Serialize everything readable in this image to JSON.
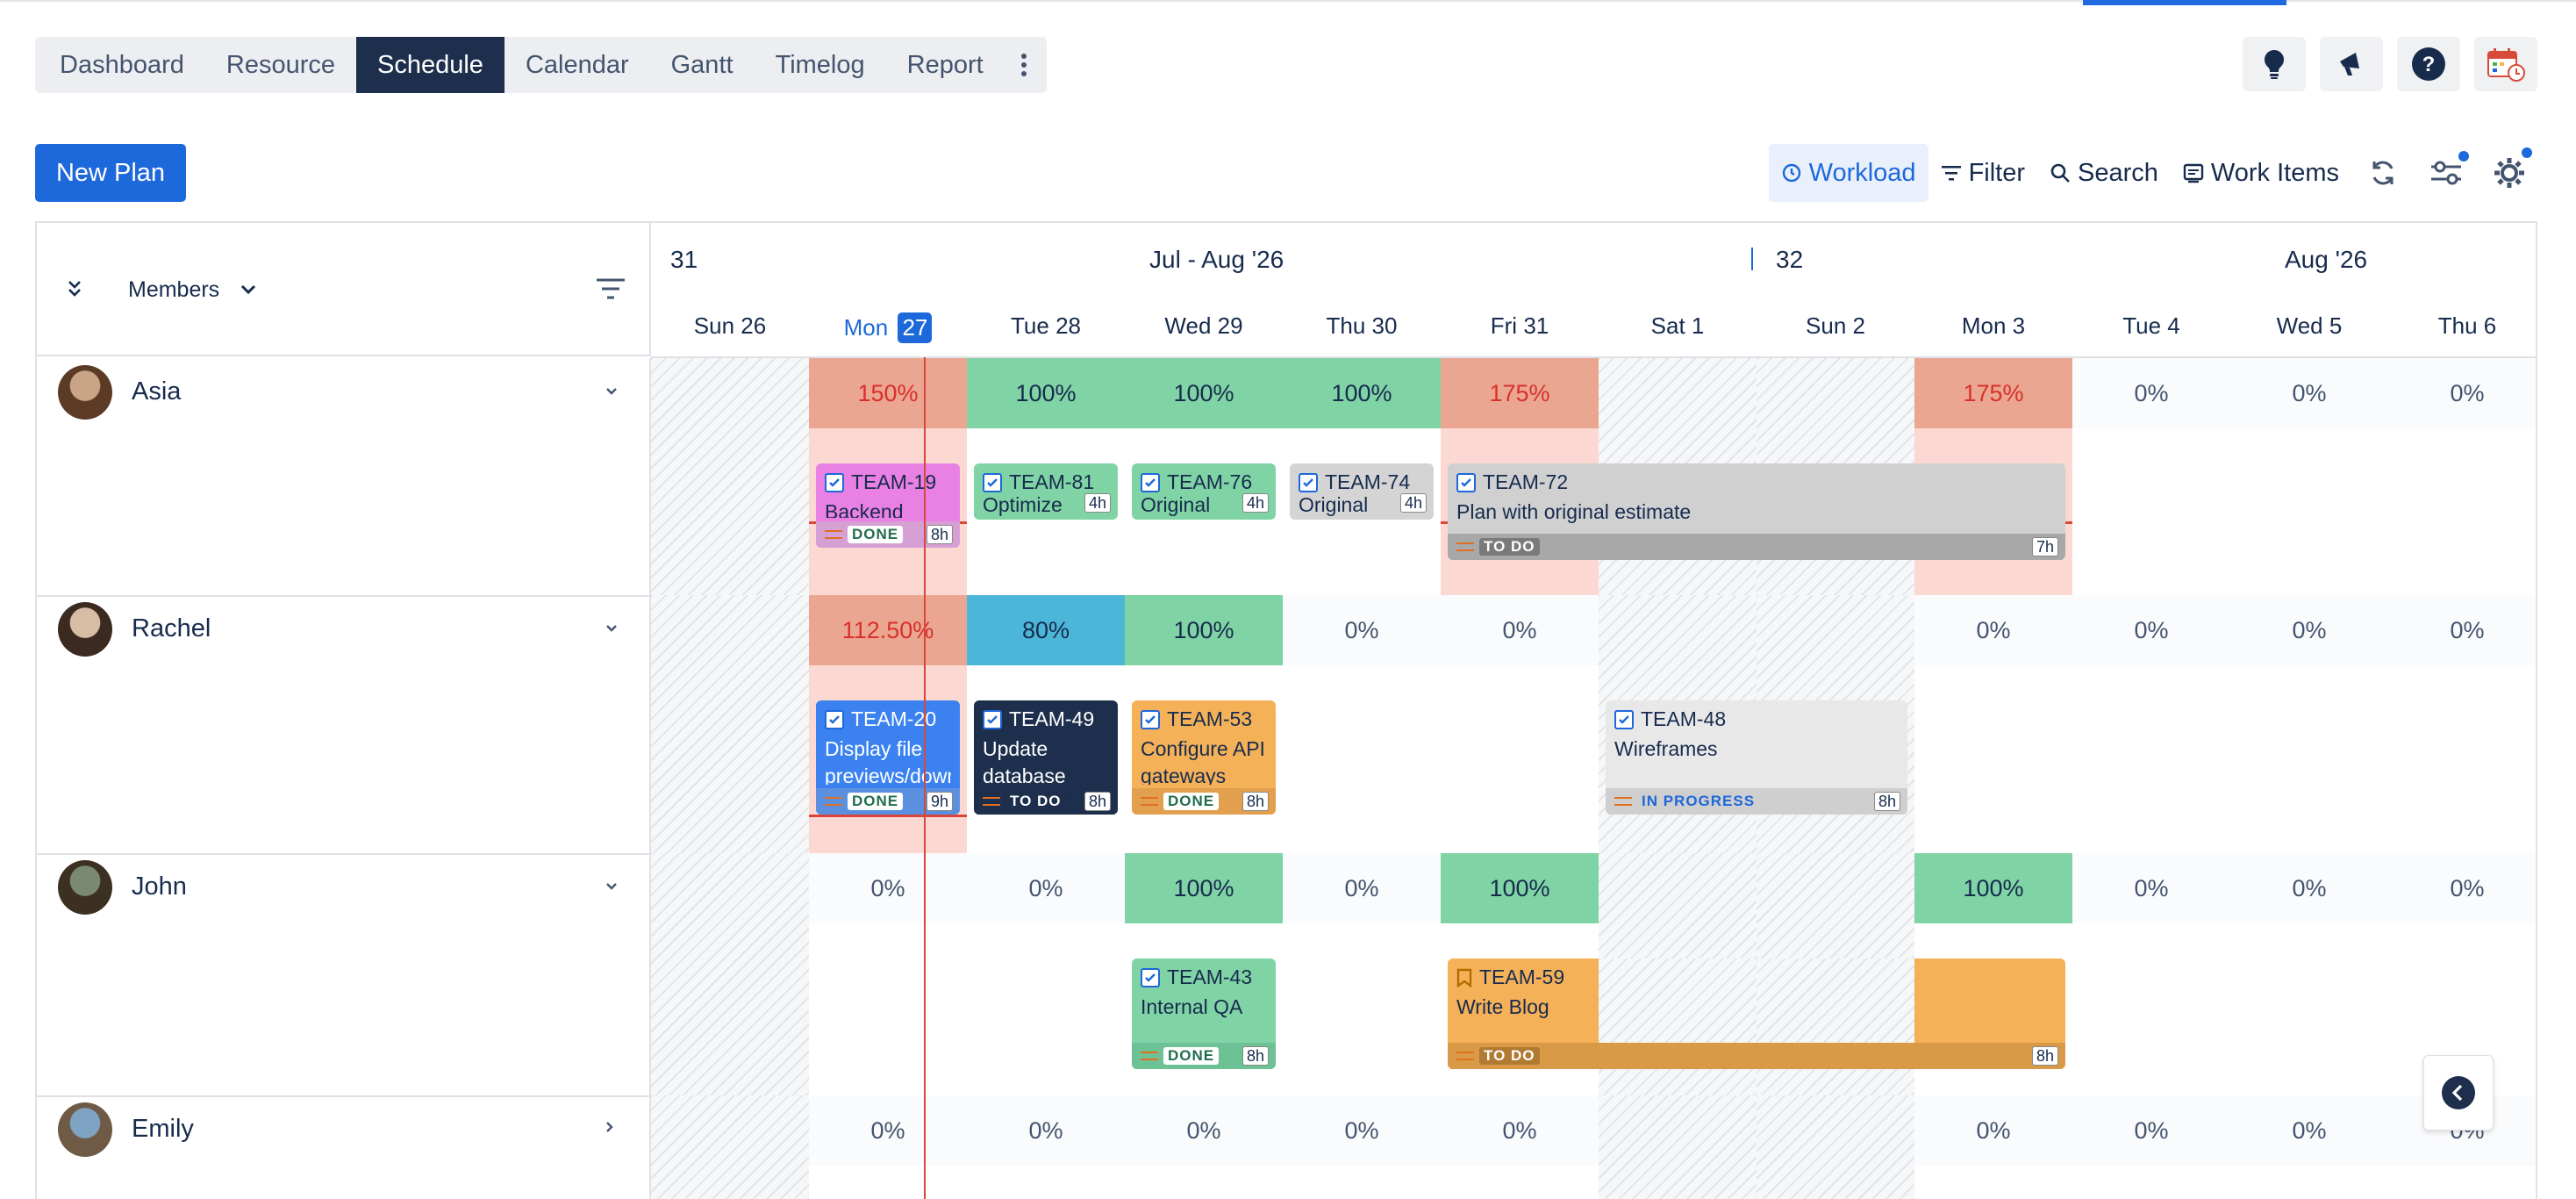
{
  "tabs": [
    {
      "label": "Dashboard"
    },
    {
      "label": "Resource"
    },
    {
      "label": "Schedule",
      "active": true
    },
    {
      "label": "Calendar"
    },
    {
      "label": "Gantt"
    },
    {
      "label": "Timelog"
    },
    {
      "label": "Report"
    }
  ],
  "header_icons": [
    "lightbulb-icon",
    "megaphone-icon",
    "help-icon",
    "calendar-clock-icon"
  ],
  "new_plan": "New Plan",
  "toolbar": {
    "workload": "Workload",
    "filter": "Filter",
    "search": "Search",
    "work_items": "Work Items"
  },
  "members_label": "Members",
  "timeline": {
    "week_a": "31",
    "month_a": "Jul - Aug '26",
    "week_b": "32",
    "month_b": "Aug '26",
    "days": [
      {
        "name": "Sun",
        "num": "26"
      },
      {
        "name": "Mon",
        "num": "27",
        "today": true
      },
      {
        "name": "Tue",
        "num": "28"
      },
      {
        "name": "Wed",
        "num": "29"
      },
      {
        "name": "Thu",
        "num": "30"
      },
      {
        "name": "Fri",
        "num": "31"
      },
      {
        "name": "Sat",
        "num": "1"
      },
      {
        "name": "Sun",
        "num": "2"
      },
      {
        "name": "Mon",
        "num": "3"
      },
      {
        "name": "Tue",
        "num": "4"
      },
      {
        "name": "Wed",
        "num": "5"
      },
      {
        "name": "Thu",
        "num": "6"
      }
    ]
  },
  "members": [
    {
      "name": "Asia",
      "expanded": true,
      "loads": [
        "",
        "150%",
        "100%",
        "100%",
        "100%",
        "175%",
        "",
        "",
        "175%",
        "0%",
        "0%",
        "0%"
      ],
      "cards": [
        {
          "key": "TEAM-19",
          "title": "Backend",
          "status": "DONE",
          "hours": "8h"
        },
        {
          "key": "TEAM-81",
          "title": "Optimize",
          "status": "",
          "hours": "4h"
        },
        {
          "key": "TEAM-76",
          "title": "Original",
          "status": "",
          "hours": "4h"
        },
        {
          "key": "TEAM-74",
          "title": "Original",
          "status": "",
          "hours": "4h"
        },
        {
          "key": "TEAM-72",
          "title": "Plan with original estimate",
          "status": "TO DO",
          "hours": "7h"
        }
      ]
    },
    {
      "name": "Rachel",
      "expanded": true,
      "loads": [
        "",
        "112.50%",
        "80%",
        "100%",
        "0%",
        "0%",
        "",
        "",
        "0%",
        "0%",
        "0%",
        "0%"
      ],
      "cards": [
        {
          "key": "TEAM-20",
          "title": "Display file previews/download links",
          "status": "DONE",
          "hours": "9h"
        },
        {
          "key": "TEAM-49",
          "title": "Update database",
          "status": "TO DO",
          "hours": "8h"
        },
        {
          "key": "TEAM-53",
          "title": "Configure API gateways",
          "status": "DONE",
          "hours": "8h"
        },
        {
          "key": "TEAM-48",
          "title": "Wireframes",
          "status": "IN PROGRESS",
          "hours": "8h"
        }
      ]
    },
    {
      "name": "John",
      "expanded": true,
      "loads": [
        "",
        "0%",
        "0%",
        "100%",
        "0%",
        "100%",
        "",
        "",
        "100%",
        "0%",
        "0%",
        "0%"
      ],
      "cards": [
        {
          "key": "TEAM-43",
          "title": "Internal QA",
          "status": "DONE",
          "hours": "8h"
        },
        {
          "key": "TEAM-59",
          "title": "Write Blog",
          "status": "TO DO",
          "hours": "8h"
        }
      ]
    },
    {
      "name": "Emily",
      "expanded": false,
      "loads": [
        "",
        "0%",
        "0%",
        "0%",
        "0%",
        "0%",
        "",
        "",
        "0%",
        "0%",
        "0%",
        "0%"
      ]
    }
  ],
  "colors": {
    "accent": "#1d68da",
    "over": "#eba692",
    "full": "#7fd3a4",
    "partial": "#4bb6d8"
  }
}
